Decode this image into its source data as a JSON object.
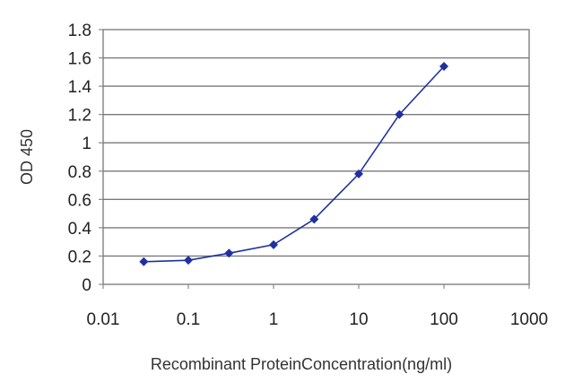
{
  "chart_data": {
    "type": "line",
    "xlabel": "Recombinant ProteinConcentration(ng/ml)",
    "ylabel": "OD 450",
    "xscale": "log",
    "xlim": [
      0.01,
      1000
    ],
    "ylim": [
      0,
      1.8
    ],
    "x_ticks": [
      "0.01",
      "0.1",
      "1",
      "10",
      "100",
      "1000"
    ],
    "y_ticks": [
      "0",
      "0.2",
      "0.4",
      "0.6",
      "0.8",
      "1",
      "1.2",
      "1.4",
      "1.6",
      "1.8"
    ],
    "grid": "horizontal",
    "series": [
      {
        "x": [
          0.03,
          0.1,
          0.3,
          1,
          3,
          10,
          30,
          100
        ],
        "y": [
          0.16,
          0.17,
          0.22,
          0.28,
          0.46,
          0.78,
          1.2,
          1.54
        ],
        "color": "#2030a0"
      }
    ]
  }
}
